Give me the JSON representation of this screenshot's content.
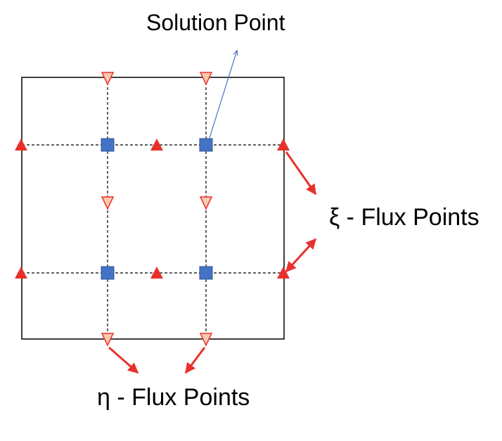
{
  "labels": {
    "solution_point": "Solution Point",
    "xi_flux_points": "ξ - Flux Points",
    "eta_flux_points": "η - Flux Points"
  },
  "colors": {
    "cell_border": "#000000",
    "grid_lines": "#000000",
    "solution_point_fill": "#4472C4",
    "solution_point_stroke": "#2F5597",
    "xi_flux_fill": "#E8312C",
    "eta_flux_fill": "#F8C8B0",
    "eta_flux_stroke": "#E8312C",
    "callout_red": "#E8312C",
    "callout_blue": "#4472C4"
  },
  "diagram": {
    "solution_points": 4,
    "xi_flux_points": 6,
    "eta_flux_points": 6
  }
}
